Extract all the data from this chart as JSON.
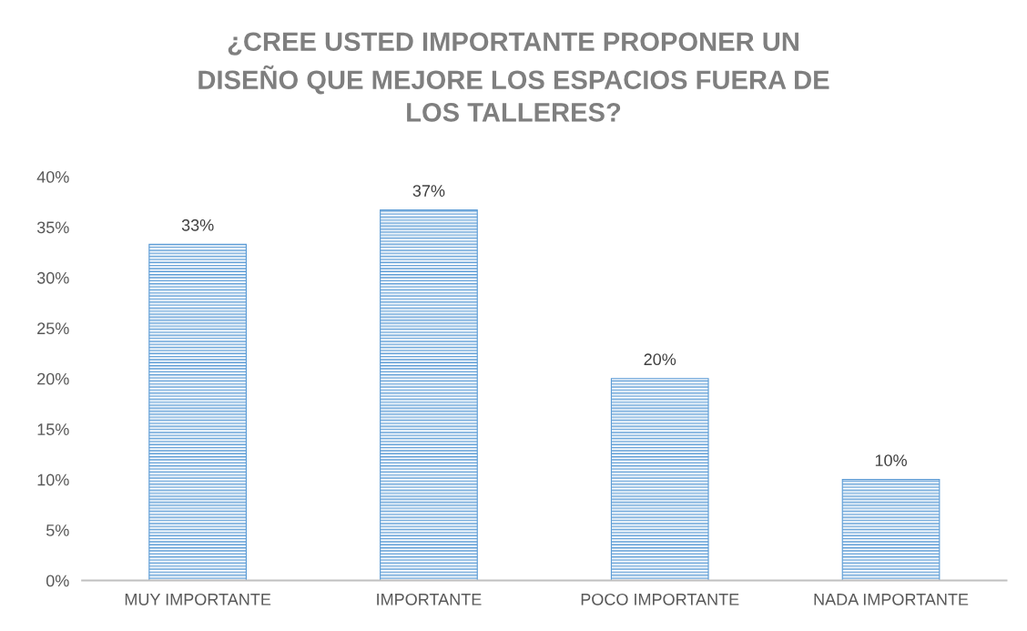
{
  "chart_data": {
    "type": "bar",
    "title": "¿CREE USTED IMPORTANTE PROPONER UN\nDISEÑO QUE MEJORE LOS ESPACIOS FUERA DE\nLOS TALLERES?",
    "categories": [
      "MUY IMPORTANTE",
      "IMPORTANTE",
      "POCO IMPORTANTE",
      "NADA IMPORTANTE"
    ],
    "values": [
      33.3,
      36.7,
      20,
      10
    ],
    "value_labels": [
      "33%",
      "37%",
      "20%",
      "10%"
    ],
    "color": "#5b9bd5",
    "ylim": [
      0,
      40
    ],
    "yticks": [
      {
        "value": 0,
        "label": "0%"
      },
      {
        "value": 5,
        "label": "5%"
      },
      {
        "value": 10,
        "label": "10%"
      },
      {
        "value": 15,
        "label": "15%"
      },
      {
        "value": 20,
        "label": "20%"
      },
      {
        "value": 25,
        "label": "25%"
      },
      {
        "value": 30,
        "label": "30%"
      },
      {
        "value": 35,
        "label": "35%"
      },
      {
        "value": 40,
        "label": "40%"
      }
    ],
    "grid": false
  }
}
